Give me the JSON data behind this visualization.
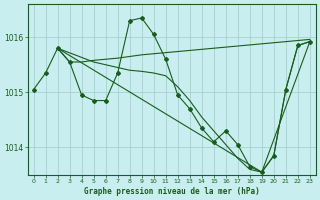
{
  "title": "Graphe pression niveau de la mer (hPa)",
  "background_color": "#c8eef0",
  "grid_color": "#a0cccc",
  "line_color": "#1a5c1a",
  "marker_color": "#1a5c1a",
  "ylim": [
    1013.5,
    1016.6
  ],
  "yticks": [
    1014,
    1015,
    1016
  ],
  "xlim": [
    -0.5,
    23.5
  ],
  "xticks": [
    0,
    1,
    2,
    3,
    4,
    5,
    6,
    7,
    8,
    9,
    10,
    11,
    12,
    13,
    14,
    15,
    16,
    17,
    18,
    19,
    20,
    21,
    22,
    23
  ],
  "series1_x": [
    0,
    1,
    2,
    3,
    4,
    5,
    6,
    7,
    8,
    9,
    10,
    11,
    12,
    13,
    14,
    15,
    16,
    17,
    18,
    19,
    20,
    21,
    22,
    23
  ],
  "series1_y": [
    1015.05,
    1015.35,
    1015.8,
    1015.55,
    1014.95,
    1014.85,
    1014.85,
    1015.35,
    1016.3,
    1016.35,
    1016.05,
    1015.6,
    1014.95,
    1014.7,
    1014.35,
    1014.1,
    1014.3,
    1014.05,
    1013.65,
    1013.55,
    1013.85,
    1015.05,
    1015.85,
    1015.92
  ],
  "series2_x": [
    2,
    3,
    4,
    5,
    6,
    7,
    8,
    9,
    10,
    11,
    12,
    13,
    14,
    15,
    16,
    17,
    18,
    19,
    20,
    21,
    22,
    23
  ],
  "series2_y": [
    1015.8,
    1015.55,
    1015.55,
    1015.58,
    1015.6,
    1015.62,
    1015.65,
    1015.68,
    1015.7,
    1015.72,
    1015.74,
    1015.76,
    1015.78,
    1015.8,
    1015.82,
    1015.84,
    1015.86,
    1015.88,
    1015.9,
    1015.92,
    1015.94,
    1015.96
  ],
  "series3_x": [
    2,
    19,
    23
  ],
  "series3_y": [
    1015.8,
    1013.55,
    1015.92
  ],
  "series4_x": [
    2,
    5,
    6,
    7,
    8,
    9,
    10,
    11,
    12,
    13,
    14,
    15,
    16,
    17,
    18,
    19,
    20,
    21,
    22,
    23
  ],
  "series4_y": [
    1015.8,
    1015.55,
    1015.5,
    1015.45,
    1015.4,
    1015.38,
    1015.35,
    1015.3,
    1015.1,
    1014.85,
    1014.55,
    1014.3,
    1014.05,
    1013.8,
    1013.6,
    1013.55,
    1013.85,
    1015.05,
    1015.85,
    1015.92
  ]
}
